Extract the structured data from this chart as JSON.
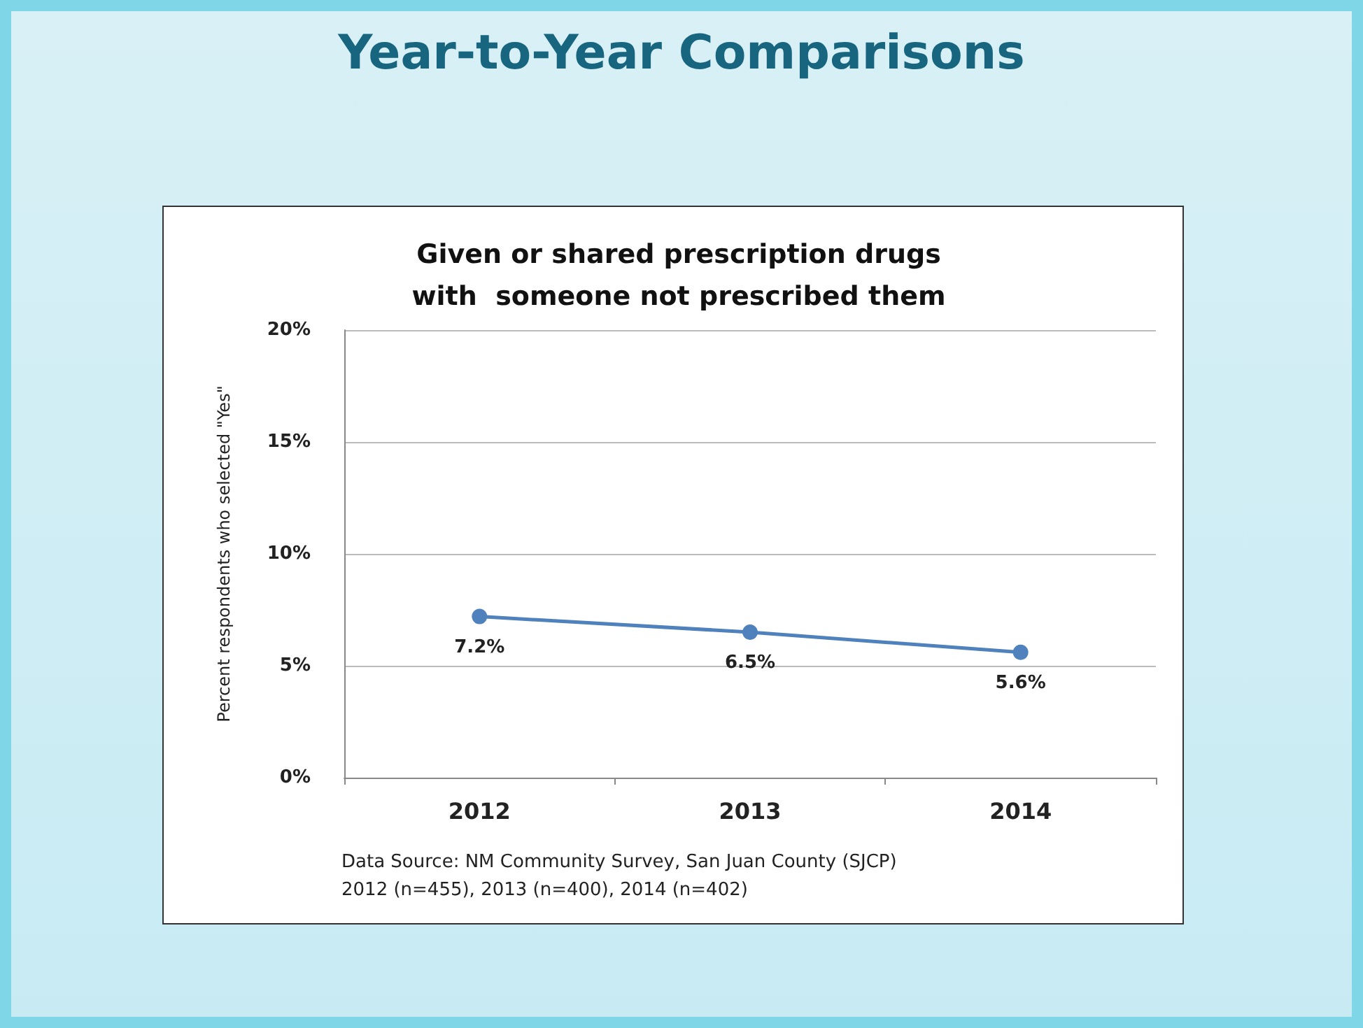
{
  "chart_data": {
    "type": "line",
    "title": "Year-to-Year Comparisons",
    "subtitle": "Given or shared prescription drugs\nwith  someone not prescribed them",
    "ylabel": "Percent respondents who selected \"Yes\"",
    "categories": [
      "2012",
      "2013",
      "2014"
    ],
    "series": [
      {
        "color": "#4f81bd",
        "values": [
          7.2,
          6.5,
          5.6
        ],
        "value_labels": [
          "7.2%",
          "6.5%",
          "5.6%"
        ]
      }
    ],
    "ylim": [
      0,
      20
    ],
    "yticks": [
      {
        "value": 0,
        "label": "0%"
      },
      {
        "value": 5,
        "label": "5%"
      },
      {
        "value": 10,
        "label": "10%"
      },
      {
        "value": 15,
        "label": "15%"
      },
      {
        "value": 20,
        "label": "20%"
      }
    ],
    "grid": "y",
    "marker": "circle",
    "line_style": "solid",
    "annotations": [
      "Data Source: NM Community Survey, San Juan County (SJCP)",
      "2012 (n=455), 2013 (n=400), 2014 (n=402)"
    ]
  }
}
